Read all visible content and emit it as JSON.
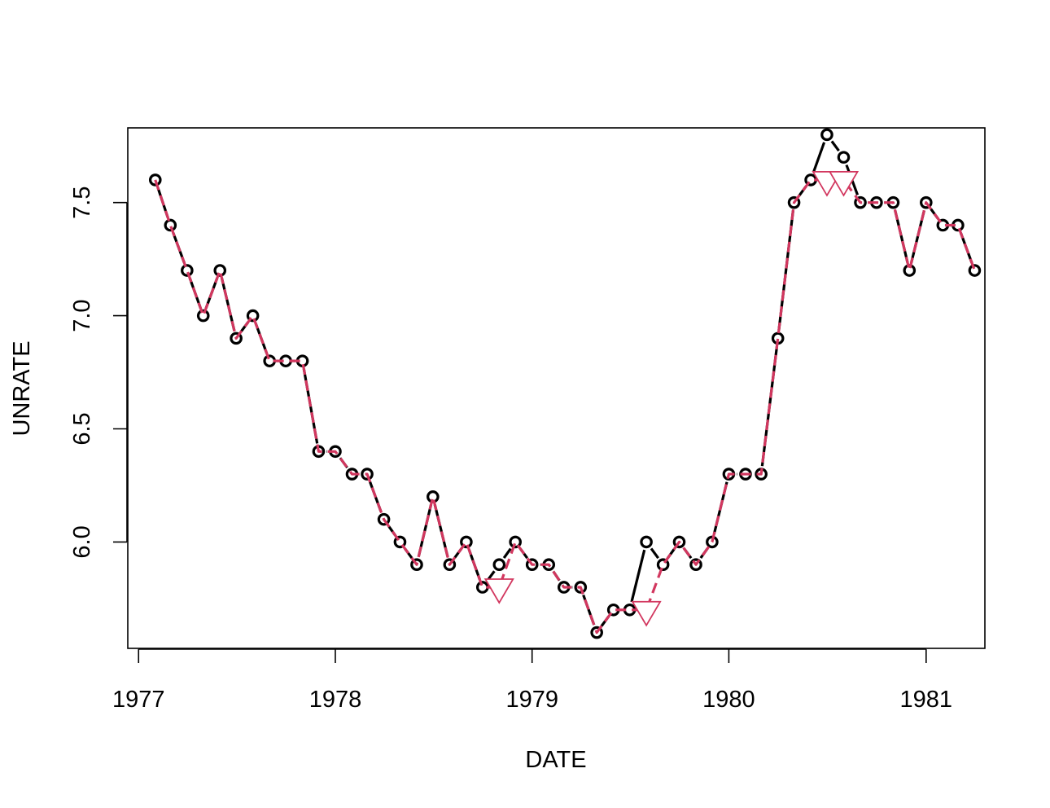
{
  "chart_data": {
    "type": "line",
    "title": "",
    "xlabel": "DATE",
    "ylabel": "UNRATE",
    "xlim": [
      "1976-12-12",
      "1981-04-20"
    ],
    "ylim": [
      5.53,
      7.83
    ],
    "x_ticks": [
      {
        "date": "1977-01-01",
        "label": "1977"
      },
      {
        "date": "1978-01-01",
        "label": "1978"
      },
      {
        "date": "1979-01-01",
        "label": "1979"
      },
      {
        "date": "1980-01-01",
        "label": "1980"
      },
      {
        "date": "1981-01-01",
        "label": "1981"
      }
    ],
    "y_ticks": [
      {
        "value": 6.0,
        "label": "6.0"
      },
      {
        "value": 6.5,
        "label": "6.5"
      },
      {
        "value": 7.0,
        "label": "7.0"
      },
      {
        "value": 7.5,
        "label": "7.5"
      }
    ],
    "grid": false,
    "legend": "none",
    "x": [
      "1977-02-01",
      "1977-03-01",
      "1977-04-01",
      "1977-05-01",
      "1977-06-01",
      "1977-07-01",
      "1977-08-01",
      "1977-09-01",
      "1977-10-01",
      "1977-11-01",
      "1977-12-01",
      "1978-01-01",
      "1978-02-01",
      "1978-03-01",
      "1978-04-01",
      "1978-05-01",
      "1978-06-01",
      "1978-07-01",
      "1978-08-01",
      "1978-09-01",
      "1978-10-01",
      "1978-11-01",
      "1978-12-01",
      "1979-01-01",
      "1979-02-01",
      "1979-03-01",
      "1979-04-01",
      "1979-05-01",
      "1979-06-01",
      "1979-07-01",
      "1979-08-01",
      "1979-09-01",
      "1979-10-01",
      "1979-11-01",
      "1979-12-01",
      "1980-01-01",
      "1980-02-01",
      "1980-03-01",
      "1980-04-01",
      "1980-05-01",
      "1980-06-01",
      "1980-07-01",
      "1980-08-01",
      "1980-09-01",
      "1980-10-01",
      "1980-11-01",
      "1980-12-01",
      "1981-01-01",
      "1981-02-01",
      "1981-03-01",
      "1981-04-01"
    ],
    "series": [
      {
        "style": "black-solid-circles",
        "color": "#000000",
        "values": [
          7.6,
          7.4,
          7.2,
          7.0,
          7.2,
          6.9,
          7.0,
          6.8,
          6.8,
          6.8,
          6.4,
          6.4,
          6.3,
          6.3,
          6.1,
          6.0,
          5.9,
          6.2,
          5.9,
          6.0,
          5.8,
          5.9,
          6.0,
          5.9,
          5.9,
          5.8,
          5.8,
          5.6,
          5.7,
          5.7,
          6.0,
          5.9,
          6.0,
          5.9,
          6.0,
          6.3,
          6.3,
          6.3,
          6.9,
          7.5,
          7.6,
          7.8,
          7.7,
          7.5,
          7.5,
          7.5,
          7.2,
          7.5,
          7.4,
          7.4,
          7.2
        ]
      },
      {
        "style": "red-dashed-triangles",
        "color": "#D2375F",
        "values": [
          7.6,
          7.4,
          7.2,
          7.0,
          7.2,
          6.9,
          7.0,
          6.8,
          6.8,
          6.8,
          6.4,
          6.4,
          6.3,
          6.3,
          6.1,
          6.0,
          5.9,
          6.2,
          5.9,
          6.0,
          5.8,
          5.8,
          6.0,
          5.9,
          5.9,
          5.8,
          5.8,
          5.6,
          5.7,
          5.7,
          5.7,
          5.9,
          6.0,
          5.9,
          6.0,
          6.3,
          6.3,
          6.3,
          6.9,
          7.5,
          7.6,
          7.6,
          7.6,
          7.5,
          7.5,
          7.5,
          7.2,
          7.5,
          7.4,
          7.4,
          7.2
        ],
        "triangle_markers": [
          "1978-11-01",
          "1979-08-01",
          "1980-07-01",
          "1980-08-01"
        ]
      }
    ]
  }
}
